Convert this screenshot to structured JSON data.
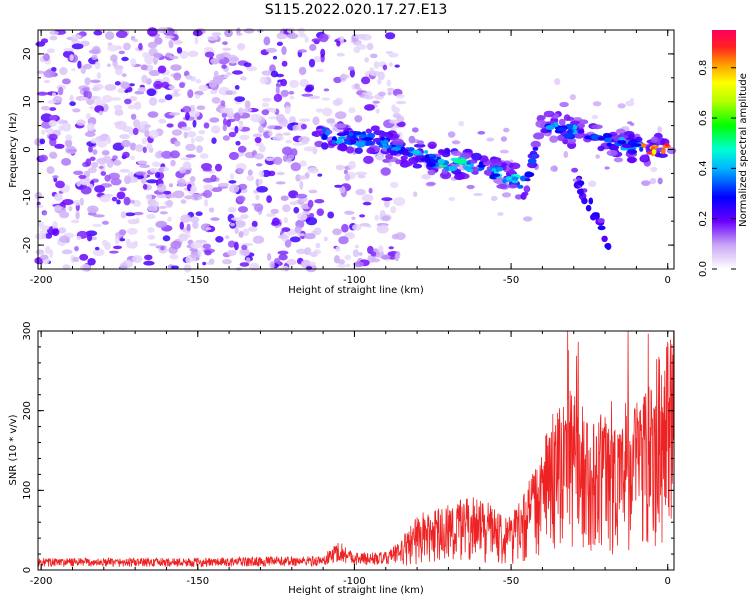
{
  "title": "S115.2022.020.17.27.E13",
  "colors": {
    "line": "#ee2222",
    "axis": "#000000",
    "background": "#ffffff"
  },
  "chart_data": [
    {
      "type": "heatmap",
      "xlabel": "Height of straight line (km)",
      "ylabel": "Frequency (Hz)",
      "xlim": [
        -201,
        2
      ],
      "ylim": [
        -25,
        25
      ],
      "xticks": [
        -200,
        -150,
        -100,
        -50,
        0
      ],
      "yticks": [
        -20,
        -10,
        0,
        10,
        20
      ],
      "grid": false,
      "colorbar": {
        "label": "Normalized spectral amplitude",
        "ticks": [
          0.0,
          0.2,
          0.4,
          0.6,
          0.8
        ],
        "range": [
          0,
          0.95
        ]
      },
      "ridge": [
        {
          "x": -110,
          "y": 3.0
        },
        {
          "x": -100,
          "y": 2.5
        },
        {
          "x": -90,
          "y": 1.0
        },
        {
          "x": -80,
          "y": -1.0
        },
        {
          "x": -70,
          "y": -3.0
        },
        {
          "x": -60,
          "y": -3.5
        },
        {
          "x": -50,
          "y": -6.0
        },
        {
          "x": -45,
          "y": -7.0
        },
        {
          "x": -40,
          "y": 5.5
        },
        {
          "x": -30,
          "y": 3.5
        },
        {
          "x": -20,
          "y": 2.0
        },
        {
          "x": -10,
          "y": 0.5
        },
        {
          "x": -5,
          "y": 0.0
        },
        {
          "x": 0,
          "y": 0.0
        }
      ]
    },
    {
      "type": "line",
      "xlabel": "Height of straight line (km)",
      "ylabel": "SNR (10 * v/v)",
      "xlim": [
        -201,
        2
      ],
      "ylim": [
        0,
        300
      ],
      "xticks": [
        -200,
        -150,
        -100,
        -50,
        0
      ],
      "yticks": [
        0,
        100,
        200,
        300
      ],
      "grid": false,
      "envelope": [
        {
          "x": -201,
          "y": 10
        },
        {
          "x": -150,
          "y": 10
        },
        {
          "x": -110,
          "y": 12
        },
        {
          "x": -105,
          "y": 25
        },
        {
          "x": -100,
          "y": 15
        },
        {
          "x": -90,
          "y": 15
        },
        {
          "x": -85,
          "y": 25
        },
        {
          "x": -80,
          "y": 45
        },
        {
          "x": -70,
          "y": 55
        },
        {
          "x": -60,
          "y": 60
        },
        {
          "x": -50,
          "y": 45
        },
        {
          "x": -45,
          "y": 70
        },
        {
          "x": -40,
          "y": 100
        },
        {
          "x": -35,
          "y": 140
        },
        {
          "x": -30,
          "y": 150
        },
        {
          "x": -25,
          "y": 120
        },
        {
          "x": -20,
          "y": 130
        },
        {
          "x": -15,
          "y": 120
        },
        {
          "x": -10,
          "y": 140
        },
        {
          "x": -5,
          "y": 170
        },
        {
          "x": 0,
          "y": 190
        },
        {
          "x": 2,
          "y": 220
        }
      ]
    }
  ]
}
